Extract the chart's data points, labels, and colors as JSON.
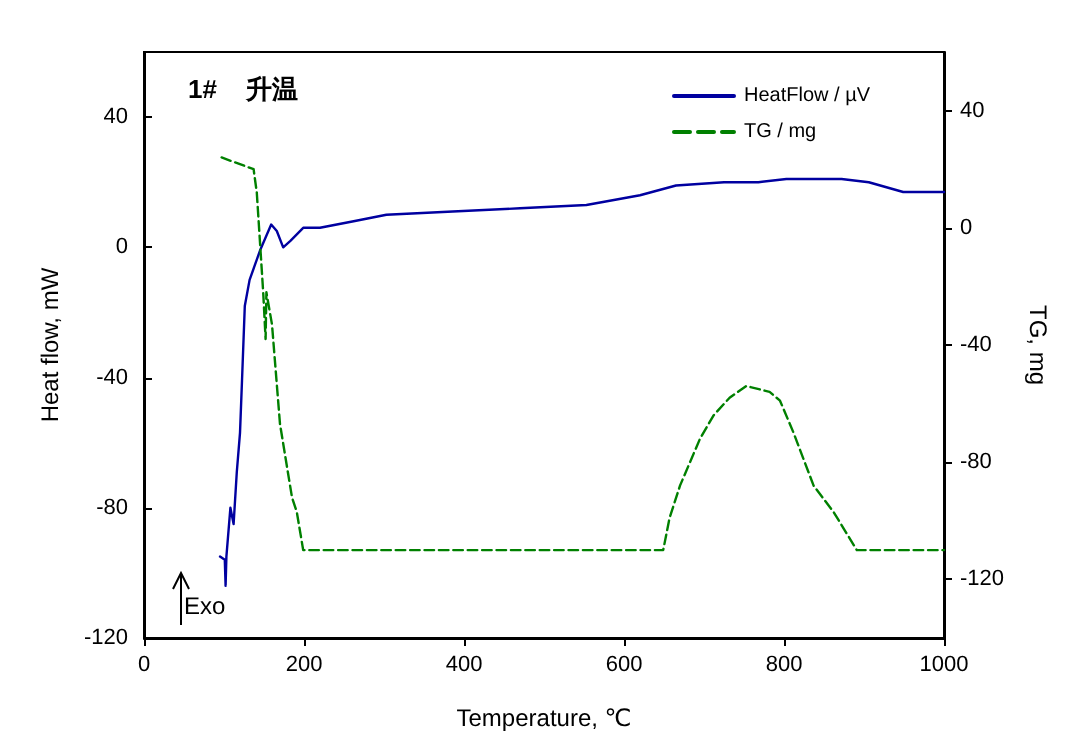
{
  "chart_data": {
    "type": "line",
    "xlabel": "Temperature, ℃",
    "ylabel": "Heat flow, mW",
    "y2label": "TG, mg",
    "annotations": [
      "1#    升温",
      "Exo"
    ],
    "xlim": [
      0,
      1000
    ],
    "xticks": [
      0,
      200,
      400,
      600,
      800,
      1000
    ],
    "ylim": [
      -120,
      60
    ],
    "yticks": [
      -120,
      -80,
      -40,
      0,
      40
    ],
    "y2lim": [
      -140,
      60
    ],
    "y2ticks": [
      -120,
      -80,
      -40,
      0,
      40
    ],
    "grid": false,
    "legend": "top right",
    "marker": "none",
    "series": [
      {
        "name": "HeatFlow / µV",
        "color": "#0000a0",
        "line_style": "solid",
        "x": [
          95,
          101,
          102,
          103,
          108,
          112,
          116,
          120,
          122.5,
          126,
          132,
          145,
          159,
          166,
          174,
          183,
          199,
          220,
          262,
          303,
          386,
          470,
          553,
          620,
          665,
          725,
          768,
          803,
          872,
          906,
          949,
          1000
        ],
        "values": [
          -95,
          -96,
          -104,
          -95,
          -80,
          -85,
          -69,
          -57,
          -41,
          -18,
          -10,
          -1,
          7,
          5,
          0,
          2,
          6,
          6,
          8,
          10,
          11,
          12,
          13,
          16,
          19,
          20,
          20,
          21,
          21,
          20,
          17,
          17
        ]
      },
      {
        "name": "TG / mg",
        "color": "#008000",
        "line_style": "dashed",
        "axis": "y2",
        "x": [
          97,
          137,
          141,
          149,
          152,
          153,
          160,
          170,
          185,
          191,
          199,
          649,
          657,
          670,
          695,
          712,
          732,
          753,
          782,
          795,
          812,
          837,
          862,
          891,
          1000
        ],
        "values": [
          24,
          20,
          12,
          -22,
          -38,
          -22,
          -33,
          -67,
          -92,
          -97,
          -110,
          -110,
          -99,
          -88,
          -72,
          -64,
          -58,
          -54,
          -56,
          -59,
          -70,
          -88,
          -97,
          -110,
          -110
        ]
      }
    ]
  }
}
